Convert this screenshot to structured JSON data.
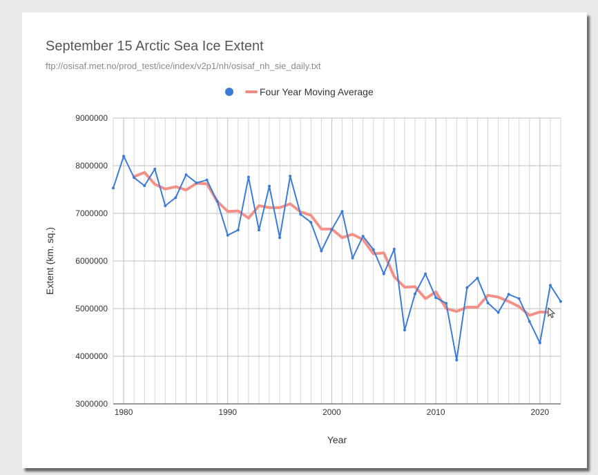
{
  "chart_data": {
    "type": "line",
    "title": "September 15 Arctic Sea Ice Extent",
    "subtitle": "ftp://osisaf.met.no/prod_test/ice/index/v2p1/nh/osisaf_nh_sie_daily.txt",
    "xlabel": "Year",
    "ylabel": "Extent (km. sq.)",
    "xlim": [
      1979,
      2022
    ],
    "ylim": [
      3000000,
      9000000
    ],
    "x_ticks": [
      1980,
      1990,
      2000,
      2010,
      2020
    ],
    "y_ticks": [
      "3000000",
      "4000000",
      "5000000",
      "6000000",
      "7000000",
      "8000000",
      "9000000"
    ],
    "grid": true,
    "legend": {
      "placement": "top",
      "entries": [
        "",
        "Four Year Moving Average"
      ]
    },
    "series": [
      {
        "color": "#3a7bd5",
        "x": [
          1979,
          1980,
          1981,
          1982,
          1983,
          1984,
          1985,
          1986,
          1987,
          1988,
          1989,
          1990,
          1991,
          1992,
          1993,
          1994,
          1995,
          1996,
          1997,
          1998,
          1999,
          2000,
          2001,
          2002,
          2003,
          2004,
          2005,
          2006,
          2007,
          2008,
          2009,
          2010,
          2011,
          2012,
          2013,
          2014,
          2015,
          2016,
          2017,
          2018,
          2019,
          2020,
          2021,
          2022
        ],
        "values": [
          7530000,
          8200000,
          7750000,
          7580000,
          7930000,
          7160000,
          7330000,
          7810000,
          7640000,
          7700000,
          7250000,
          6540000,
          6650000,
          7760000,
          6650000,
          7570000,
          6490000,
          7780000,
          6980000,
          6810000,
          6210000,
          6660000,
          7040000,
          6060000,
          6520000,
          6240000,
          5730000,
          6250000,
          4550000,
          5310000,
          5730000,
          5230000,
          5110000,
          3920000,
          5440000,
          5640000,
          5120000,
          4920000,
          5300000,
          5210000,
          4730000,
          4280000,
          5490000,
          5150000
        ]
      },
      {
        "name": "Four Year Moving Average",
        "color": "#f28b82",
        "x": [
          1981,
          1982,
          1983,
          1984,
          1985,
          1986,
          1987,
          1988,
          1989,
          1990,
          1991,
          1992,
          1993,
          1994,
          1995,
          1996,
          1997,
          1998,
          1999,
          2000,
          2001,
          2002,
          2003,
          2004,
          2005,
          2006,
          2007,
          2008,
          2009,
          2010,
          2011,
          2012,
          2013,
          2014,
          2015,
          2016,
          2017,
          2018,
          2019,
          2020,
          2021
        ],
        "values": [
          7770000,
          7860000,
          7610000,
          7510000,
          7560000,
          7490000,
          7630000,
          7620000,
          7250000,
          7040000,
          7050000,
          6900000,
          7160000,
          7120000,
          7120000,
          7200000,
          7030000,
          6960000,
          6670000,
          6670000,
          6490000,
          6560000,
          6450000,
          6150000,
          6170000,
          5670000,
          5450000,
          5460000,
          5210000,
          5350000,
          5000000,
          4940000,
          5030000,
          5030000,
          5280000,
          5240000,
          5150000,
          5040000,
          4860000,
          4930000,
          4920000
        ]
      }
    ]
  }
}
